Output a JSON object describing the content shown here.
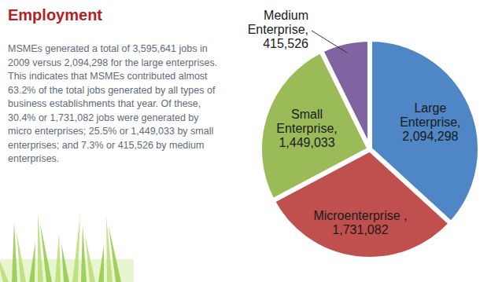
{
  "chart_data": {
    "type": "pie",
    "title": "Employment",
    "annotations": [
      "MSMEs generated a total of 3,595,641 jobs in 2009 versus 2,094,298 for the large enterprises. This indicates that MSMEs contributed almost 63.2% of the total jobs generated by all types of business establishments that year. Of these, 30.4% or 1,731,082 jobs were generated by micro enterprises; 25.5% or 1,449,033 by small enterprises; and 7.3% or 415,526 by medium enterprises."
    ],
    "categories": [
      "Large Enterprise,",
      "Microenterprise ,",
      "Small Enterprise,",
      "Medium Enterprise,"
    ],
    "values": [
      2094298,
      1731082,
      1449033,
      415526
    ],
    "value_labels": [
      "2,094,298",
      "1,731,082",
      "1,449,033",
      "415,526"
    ],
    "colors": [
      "#4f86c6",
      "#c0504d",
      "#9bbb59",
      "#8064a2"
    ],
    "data_labels": true
  }
}
